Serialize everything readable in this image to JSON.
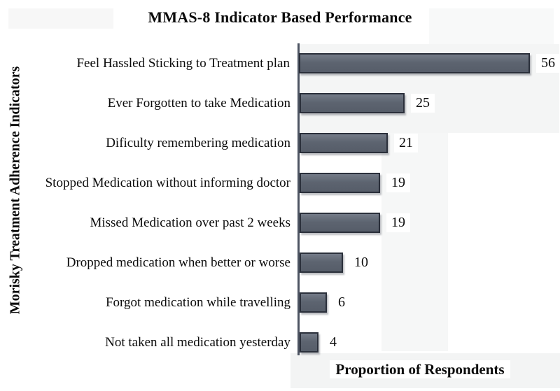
{
  "chart_data": {
    "type": "bar",
    "orientation": "horizontal",
    "title": "MMAS-8 Indicator Based Performance",
    "xlabel": "Proportion of Respondents",
    "ylabel": "Morisky Treatment Adherence Indicators",
    "categories": [
      "Feel Hassled Sticking to Treatment plan",
      "Ever Forgotten to take Medication",
      "Dificulty remembering medication",
      "Stopped Medication without informing doctor",
      "Missed Medication over past 2 weeks",
      "Dropped medication when better or worse",
      "Forgot medication while travelling",
      "Not taken all medication yesterday"
    ],
    "values": [
      56,
      25,
      21,
      19,
      19,
      10,
      6,
      4
    ],
    "value_labels": "right-of-bar",
    "xlim": [
      0,
      60
    ],
    "grid": false,
    "legend": false,
    "colors": {
      "bar_fill": "#5d6470",
      "bar_fill_light": "#747b88",
      "bar_border": "#2b303b",
      "axis_line": "#4d5462",
      "text": "#0b0b0b"
    }
  }
}
